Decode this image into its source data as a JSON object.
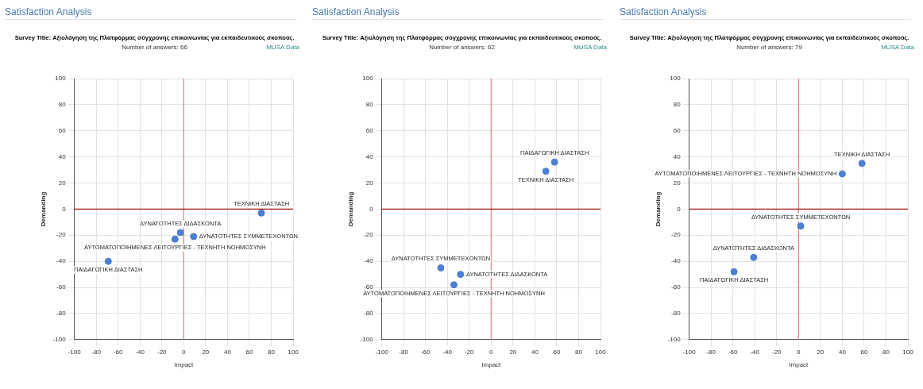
{
  "chart_data": [
    {
      "type": "scatter",
      "title": "Satisfaction Analysis",
      "subtitle": "Survey Title: Αξιολόγηση της Πλατφόρμας σύγχρονης επικοινωνίας για εκπαιδευτικούς σκοπούς.",
      "xlabel": "Impact",
      "ylabel": "Demanding",
      "x": [
        71,
        -3,
        -8,
        9,
        -69
      ],
      "values": [
        -3,
        -18,
        -23,
        -21,
        -40
      ],
      "color": "#4a7fd4",
      "marker": "circle",
      "grid": true,
      "xlim": [
        -100,
        100
      ],
      "xticks": [
        -100,
        -80,
        -60,
        -40,
        -20,
        0,
        20,
        40,
        60,
        80,
        100
      ],
      "ylim": [
        -100,
        100
      ],
      "yticks": [
        -100,
        -80,
        -60,
        -40,
        -20,
        0,
        20,
        40,
        60,
        80,
        100
      ],
      "ref_lines": [
        {
          "axis": "x",
          "value": 0,
          "color": "#e08080"
        },
        {
          "axis": "y",
          "value": 0,
          "color": "#a01010"
        }
      ],
      "annotations": [
        "Number of answers: 66",
        "MUSA Data",
        {
          "text": "ΤΕΧΝΙΚΗ ΔΙΑΣΤΑΣΗ",
          "x": 71,
          "y": -3
        },
        {
          "text": "ΔΥΝΑΤΟΤΗΤΕΣ ΔΙΔΑΣΚΟΝΤΑ",
          "x": -3,
          "y": -18
        },
        {
          "text": "ΑΥΤΟΜΑΤΟΠΟΙΗΜΕΝΕΣ ΛΕΙΤΟΥΡΓΙΕΣ - ΤΕΧΝΗΤΗ ΝΟΗΜΟΣΥΝΗ",
          "x": -8,
          "y": -23
        },
        {
          "text": "ΔΥΝΑΤΟΤΗΤΕΣ ΣΥΜΜΕΤΕΧΟΝΤΩΝ",
          "x": 9,
          "y": -21
        },
        {
          "text": "ΠΑΙΔΑΓΩΓΙΚΗ ΔΙΑΣΤΑΣΗ",
          "x": -69,
          "y": -40
        }
      ]
    },
    {
      "type": "scatter",
      "title": "Satisfaction Analysis",
      "subtitle": "Survey Title: Αξιολόγηση της Πλατφόρμας σύγχρονης επικοινωνίας για εκπαιδευτικούς σκοπούς.",
      "xlabel": "Impact",
      "ylabel": "Demanding",
      "x": [
        58,
        50,
        -46,
        -28,
        -34
      ],
      "values": [
        36,
        29,
        -45,
        -50,
        -58
      ],
      "color": "#4a7fd4",
      "marker": "circle",
      "grid": true,
      "xlim": [
        -100,
        100
      ],
      "xticks": [
        -100,
        -80,
        -60,
        -40,
        -20,
        0,
        20,
        40,
        60,
        80,
        100
      ],
      "ylim": [
        -100,
        100
      ],
      "yticks": [
        -100,
        -80,
        -60,
        -40,
        -20,
        0,
        20,
        40,
        60,
        80,
        100
      ],
      "ref_lines": [
        {
          "axis": "x",
          "value": 0,
          "color": "#e08080"
        },
        {
          "axis": "y",
          "value": 0,
          "color": "#a01010"
        }
      ],
      "annotations": [
        "Number of answers: 62",
        "MUSA Data",
        {
          "text": "ΠΑΙΔΑΓΩΓΙΚΗ ΔΙΑΣΤΑΣΗ",
          "x": 58,
          "y": 36
        },
        {
          "text": "ΤΕΧΝΙΚΗ ΔΙΑΣΤΑΣΗ",
          "x": 50,
          "y": 29
        },
        {
          "text": "ΔΥΝΑΤΟΤΗΤΕΣ ΣΥΜΜΕΤΕΧΟΝΤΩΝ",
          "x": -46,
          "y": -45
        },
        {
          "text": "ΔΥΝΑΤΟΤΗΤΕΣ ΔΙΔΑΣΚΟΝΤΑ",
          "x": -28,
          "y": -50
        },
        {
          "text": "ΑΥΤΟΜΑΤΟΠΟΙΗΜΕΝΕΣ ΛΕΙΤΟΥΡΓΙΕΣ - ΤΕΧΝΗΤΗ ΝΟΗΜΟΣΥΝΗ",
          "x": -34,
          "y": -58
        }
      ]
    },
    {
      "type": "scatter",
      "title": "Satisfaction Analysis",
      "subtitle": "Survey Title: Αξιολόγηση της Πλατφόρμας σύγχρονης επικοινωνίας για εκπαιδευτικούς σκοπούς.",
      "xlabel": "Impact",
      "ylabel": "Demanding",
      "x": [
        58,
        40,
        2,
        -41,
        -59
      ],
      "values": [
        35,
        27,
        -13,
        -37,
        -48
      ],
      "color": "#4a7fd4",
      "marker": "circle",
      "grid": true,
      "xlim": [
        -100,
        100
      ],
      "xticks": [
        -100,
        -80,
        -60,
        -40,
        -20,
        0,
        20,
        40,
        60,
        80,
        100
      ],
      "ylim": [
        -100,
        100
      ],
      "yticks": [
        -100,
        -80,
        -60,
        -40,
        -20,
        0,
        20,
        40,
        60,
        80,
        100
      ],
      "ref_lines": [
        {
          "axis": "x",
          "value": 0,
          "color": "#e08080"
        },
        {
          "axis": "y",
          "value": 0,
          "color": "#a01010"
        }
      ],
      "annotations": [
        "Number of answers: 79",
        "MUSA Data",
        {
          "text": "ΤΕΧΝΙΚΗ ΔΙΑΣΤΑΣΗ",
          "x": 58,
          "y": 35
        },
        {
          "text": "ΑΥΤΟΜΑΤΟΠΟΙΗΜΕΝΕΣ ΛΕΙΤΟΥΡΓΙΕΣ - ΤΕΧΝΗΤΗ ΝΟΗΜΟΣΥΝΗ",
          "x": 40,
          "y": 27
        },
        {
          "text": "ΔΥΝΑΤΟΤΗΤΕΣ ΣΥΜΜΕΤΕΧΟΝΤΩΝ",
          "x": 2,
          "y": -13
        },
        {
          "text": "ΔΥΝΑΤΟΤΗΤΕΣ ΔΙΔΑΣΚΟΝΤΑ",
          "x": -41,
          "y": -37
        },
        {
          "text": "ΠΑΙΔΑΓΩΓΙΚΗ ΔΙΑΣΤΑΣΗ",
          "x": -59,
          "y": -48
        }
      ]
    }
  ]
}
